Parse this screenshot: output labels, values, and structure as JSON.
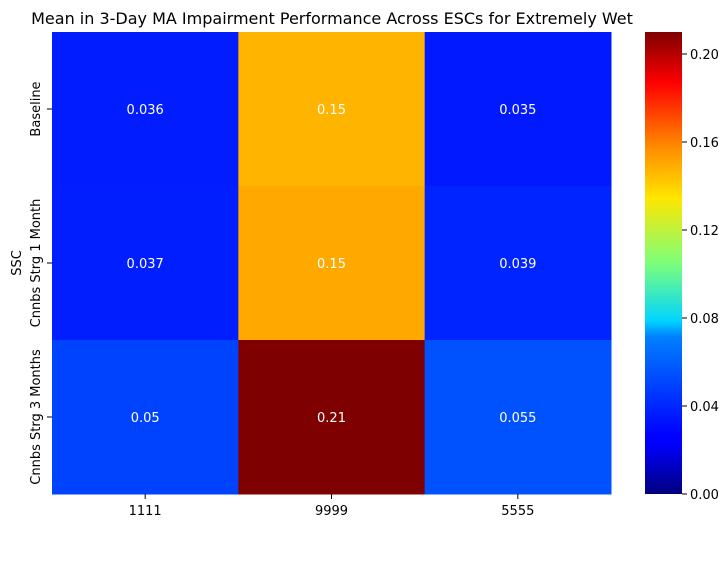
{
  "chart_data": {
    "type": "heatmap",
    "title": "Mean in 3-Day MA Impairment Performance Across ESCs for Extremely Wet",
    "xlabel": "",
    "ylabel": "SSC",
    "x_categories": [
      "1111",
      "9999",
      "5555"
    ],
    "y_categories": [
      "Baseline",
      "Cnnbs Strg 1 Month",
      "Cnnbs Strg 3 Months"
    ],
    "values": [
      [
        0.036,
        0.147,
        0.035
      ],
      [
        0.037,
        0.15,
        0.039
      ],
      [
        0.05,
        0.21,
        0.055
      ]
    ],
    "annotations": [
      [
        "0.036",
        "0.15",
        "0.035"
      ],
      [
        "0.037",
        "0.15",
        "0.039"
      ],
      [
        "0.05",
        "0.21",
        "0.055"
      ]
    ],
    "colorbar": {
      "colormap": "jet",
      "range": [
        0.0,
        0.21
      ],
      "ticks": [
        "0.00",
        "0.04",
        "0.08",
        "0.12",
        "0.16",
        "0.20"
      ],
      "tick_values": [
        0.0,
        0.04,
        0.08,
        0.12,
        0.16,
        0.2
      ]
    }
  }
}
